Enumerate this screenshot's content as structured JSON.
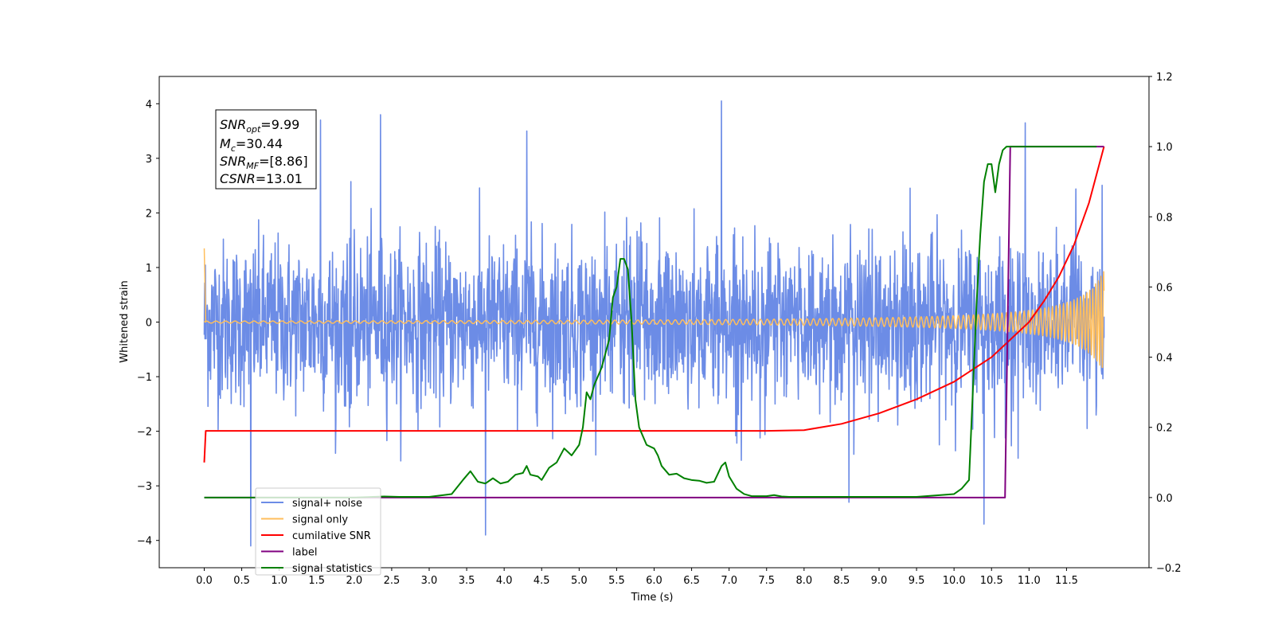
{
  "chart_data": {
    "type": "line",
    "xlabel": "Time (s)",
    "ylabel": "Whitened strain",
    "xlim": [
      -0.6,
      12.6
    ],
    "ylim_left": [
      -4.5,
      4.5
    ],
    "ylim_right": [
      -0.2,
      1.2
    ],
    "x_ticks": [
      "0.0",
      "0.5",
      "1.0",
      "1.5",
      "2.0",
      "2.5",
      "3.0",
      "3.5",
      "4.0",
      "4.5",
      "5.0",
      "5.5",
      "6.0",
      "6.5",
      "7.0",
      "7.5",
      "8.0",
      "8.5",
      "9.0",
      "9.5",
      "10.0",
      "10.5",
      "11.0",
      "11.5"
    ],
    "y_ticks_left": [
      "4",
      "3",
      "2",
      "1",
      "0",
      "−1",
      "−2",
      "−3",
      "−4"
    ],
    "y_ticks_right": [
      "1.2",
      "1.0",
      "0.8",
      "0.6",
      "0.4",
      "0.2",
      "0.0",
      "−0.2"
    ],
    "grid": false,
    "legend_placement": "lower-left",
    "annotation": {
      "lines": [
        {
          "sym": "SNR",
          "sub": "opt",
          "value": "=9.99"
        },
        {
          "sym": "M",
          "sub": "c",
          "value": "=30.44"
        },
        {
          "sym": "SNR",
          "sub": "MF",
          "value": "=[8.86]"
        },
        {
          "sym": "CSNR",
          "sub": "",
          "value": "=13.01"
        }
      ]
    },
    "series": [
      {
        "name": "signal+ noise",
        "axis": "left",
        "color": "#6c8ce6",
        "kind": "noise",
        "std": 1.0,
        "duration": 12.0,
        "outliers": [
          [
            0.62,
            -4.1
          ],
          [
            1.55,
            3.7
          ],
          [
            2.35,
            3.8
          ],
          [
            3.75,
            -3.9
          ],
          [
            4.3,
            3.5
          ],
          [
            6.9,
            4.05
          ],
          [
            10.4,
            -3.7
          ],
          [
            10.95,
            3.65
          ],
          [
            8.6,
            -3.3
          ]
        ]
      },
      {
        "name": "signal only",
        "axis": "left",
        "color": "#ffbe5c",
        "kind": "chirp",
        "t_start": 0.0,
        "t_end": 12.0,
        "amp_end": 0.95,
        "initial_spike": 1.35
      },
      {
        "name": "cumilative SNR",
        "axis": "right",
        "color": "#ff0000",
        "x": [
          0.0,
          0.02,
          0.5,
          2.0,
          4.0,
          6.0,
          7.0,
          7.5,
          8.0,
          8.5,
          9.0,
          9.5,
          10.0,
          10.5,
          11.0,
          11.2,
          11.4,
          11.6,
          11.8,
          11.9,
          12.0
        ],
        "y": [
          0.1,
          0.19,
          0.19,
          0.19,
          0.19,
          0.19,
          0.19,
          0.19,
          0.192,
          0.21,
          0.24,
          0.28,
          0.33,
          0.4,
          0.5,
          0.56,
          0.63,
          0.72,
          0.84,
          0.92,
          1.0
        ]
      },
      {
        "name": "label",
        "axis": "right",
        "color": "#800080",
        "x": [
          0.0,
          10.68,
          10.75,
          12.0
        ],
        "y": [
          0.0,
          0.0,
          1.0,
          1.0
        ]
      },
      {
        "name": "signal statistics",
        "axis": "right",
        "color": "#008000",
        "x": [
          0.0,
          0.5,
          1.0,
          1.5,
          2.0,
          2.4,
          2.6,
          3.0,
          3.3,
          3.45,
          3.55,
          3.65,
          3.75,
          3.85,
          3.95,
          4.05,
          4.15,
          4.25,
          4.3,
          4.35,
          4.45,
          4.5,
          4.6,
          4.7,
          4.8,
          4.9,
          5.0,
          5.05,
          5.1,
          5.15,
          5.2,
          5.3,
          5.4,
          5.45,
          5.5,
          5.55,
          5.6,
          5.65,
          5.7,
          5.75,
          5.8,
          5.9,
          6.0,
          6.05,
          6.1,
          6.2,
          6.3,
          6.4,
          6.5,
          6.6,
          6.7,
          6.8,
          6.9,
          6.95,
          7.0,
          7.1,
          7.2,
          7.3,
          7.4,
          7.5,
          7.6,
          7.7,
          7.8,
          8.0,
          8.5,
          9.0,
          9.5,
          10.0,
          10.1,
          10.2,
          10.25,
          10.3,
          10.35,
          10.4,
          10.45,
          10.5,
          10.55,
          10.6,
          10.65,
          10.7,
          10.75,
          10.8,
          11.0,
          11.5,
          11.9
        ],
        "y": [
          0.0,
          0.0,
          0.0,
          0.0,
          0.0,
          0.003,
          0.002,
          0.002,
          0.01,
          0.05,
          0.075,
          0.045,
          0.04,
          0.055,
          0.04,
          0.045,
          0.065,
          0.07,
          0.09,
          0.065,
          0.06,
          0.05,
          0.085,
          0.1,
          0.14,
          0.12,
          0.15,
          0.2,
          0.3,
          0.28,
          0.32,
          0.37,
          0.45,
          0.57,
          0.6,
          0.68,
          0.68,
          0.65,
          0.5,
          0.28,
          0.2,
          0.15,
          0.14,
          0.12,
          0.09,
          0.065,
          0.068,
          0.055,
          0.05,
          0.048,
          0.042,
          0.045,
          0.09,
          0.1,
          0.06,
          0.025,
          0.01,
          0.004,
          0.004,
          0.004,
          0.007,
          0.003,
          0.002,
          0.002,
          0.002,
          0.002,
          0.002,
          0.01,
          0.025,
          0.05,
          0.3,
          0.55,
          0.75,
          0.9,
          0.95,
          0.95,
          0.87,
          0.95,
          0.99,
          1.0,
          1.0,
          1.0,
          1.0,
          1.0,
          1.0
        ]
      }
    ]
  }
}
